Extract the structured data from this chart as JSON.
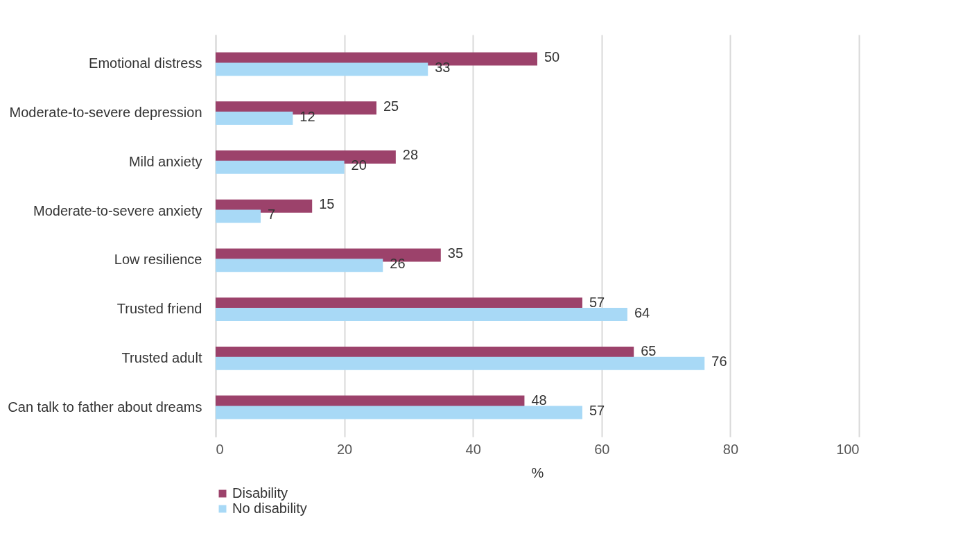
{
  "chart_data": {
    "type": "bar",
    "orientation": "horizontal",
    "xlabel": "%",
    "categories": [
      "Emotional distress",
      "Moderate-to-severe depression",
      "Mild anxiety",
      "Moderate-to-severe anxiety",
      "Low resilience",
      "Trusted friend",
      "Trusted adult",
      "Can talk to father about dreams"
    ],
    "series": [
      {
        "name": "Disability",
        "color": "#9c426b",
        "values": [
          50,
          25,
          28,
          15,
          35,
          57,
          65,
          48
        ]
      },
      {
        "name": "No disability",
        "color": "#a8d9f6",
        "values": [
          33,
          12,
          20,
          7,
          26,
          64,
          76,
          57
        ]
      }
    ],
    "xlim": [
      0,
      100
    ],
    "xticks": [
      0,
      20,
      40,
      60,
      80,
      100
    ],
    "grid": "x",
    "legend": "bottom",
    "data_labels": true
  }
}
